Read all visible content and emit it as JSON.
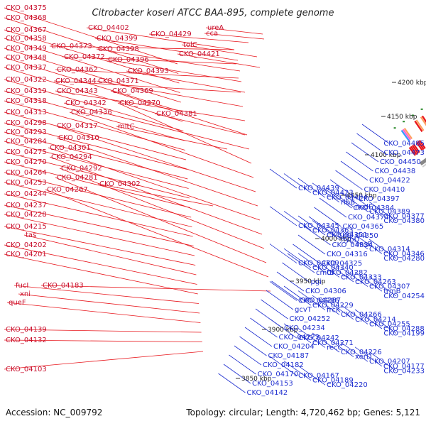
{
  "title": "Citrobacter koseri ATCC BAA-895, complete genome",
  "footer": {
    "accession": "Accession: NC_009792",
    "summary": "Topology: circular; Length: 4,720,462 bp; Genes: 5,121"
  },
  "ticks": [
    {
      "label": "4200 kbp",
      "kbp": 4200
    },
    {
      "label": "4150 kbp",
      "kbp": 4150
    },
    {
      "label": "4100 kbp",
      "kbp": 4100
    },
    {
      "label": "4050 kbp",
      "kbp": 4050
    },
    {
      "label": "4000 kbp",
      "kbp": 4000
    },
    {
      "label": "3950 kbp",
      "kbp": 3950
    },
    {
      "label": "3900 kbp",
      "kbp": 3900
    },
    {
      "label": "3850 kbp",
      "kbp": 3850
    }
  ],
  "left_labels": [
    "CKO_04375",
    "CKO_04368",
    "CKO_04367",
    "CKO_04358",
    "CKO_04349",
    "CKO_04348",
    "CKO_04337",
    "CKO_04322",
    "CKO_04319",
    "CKO_04318",
    "CKO_04313",
    "CKO_04298",
    "CKO_04293",
    "CKO_04284",
    "CKO_04275",
    "CKO_04270",
    "CKO_04264",
    "CKO_04253",
    "CKO_04244",
    "CKO_04237",
    "CKO_04228",
    "CKO_04215",
    "tas",
    "CKO_04202",
    "CKO_04201",
    "fucI",
    "xni",
    "queF",
    "CKO_04139",
    "CKO_04132",
    "CKO_04103"
  ],
  "mid_labels": [
    "CKO_04373",
    "CKO_04372",
    "CKO_04362",
    "CKO_04344",
    "CKO_04371",
    "CKO_04343",
    "CKO_04369",
    "CKO_04342",
    "CKO_04370",
    "CKO_04336",
    "CKO_04317",
    "CKO_04310",
    "CKO_04301",
    "CKO_04294",
    "CKO_04292",
    "CKO_04281",
    "CKO_04267",
    "CKO_04183"
  ],
  "top_labels": [
    "CKO_04402",
    "CKO_04399",
    "CKO_04398",
    "CKO_04396",
    "CKO_04393",
    "CKO_04429",
    "tolC",
    "CKO_04421",
    "ureA",
    "cca",
    "CKO_04381",
    "mltC",
    "CKO_04302"
  ],
  "right_labels": [
    "CKO_04485",
    "CKO_04473",
    "CKO_04450",
    "CKO_04438",
    "CKO_04422",
    "CKO_04410",
    "CKO_04397",
    "CKO_04384",
    "CKO_04374",
    "CKO_04365",
    "CKO_04350",
    "CKO_04334",
    "CKO_04316",
    "CKO_04325",
    "cmtB",
    "pgi",
    "CKO_04306",
    "CKO_04287",
    "gcvT",
    "CKO_04252",
    "CKO_04234",
    "CKO_04222",
    "CKO_04204",
    "CKO_04187",
    "CKO_04182",
    "CKO_04170",
    "CKO_04153",
    "CKO_04142",
    "CKO_04439",
    "CKO_04423",
    "CKO_04404",
    "ribB",
    "nudF",
    "CKO_04389",
    "CKO_04377",
    "CKO_04380",
    "CKO_04345",
    "CKO_04363",
    "CKO_04351",
    "hybD",
    "ansB",
    "CKO_04314",
    "CKO_04346",
    "CKO_04280",
    "CKO_04309",
    "CKO_04340",
    "CKO_04282",
    "CKO_04333",
    "CKO_04263",
    "CKO_04307",
    "trmB",
    "CKO_04254",
    "CKO_04286",
    "CKO_04229",
    "frcK",
    "CKO_04266",
    "CKO_04214",
    "CKO_04255",
    "CKO_04288",
    "CKO_04199",
    "CKO_04242",
    "CKO_04271",
    "recC",
    "CKO_04226",
    "xerD",
    "CKO_04207",
    "CKO_04177",
    "CKO_04233",
    "CKO_04167",
    "CKO_04189",
    "CKO_04220"
  ],
  "colors": {
    "forward": "#e8151b",
    "reverse": "#1f2fd0",
    "backbone": "#888888",
    "gc": "#2a8a2a"
  }
}
